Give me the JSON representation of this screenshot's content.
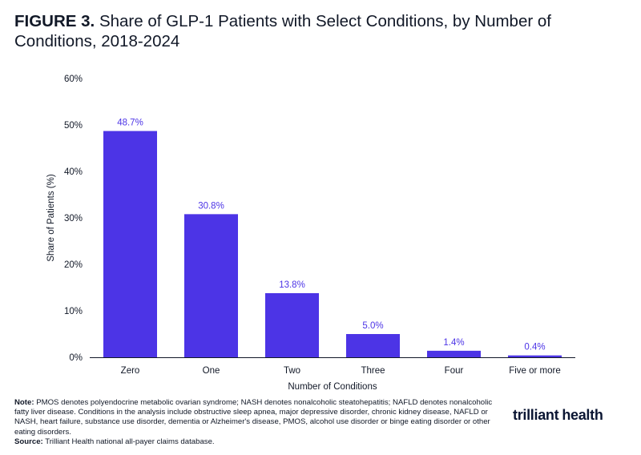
{
  "title": {
    "figure_label": "FIGURE 3.",
    "text": "Share of GLP-1 Patients with Select Conditions, by Number of Conditions, 2018-2024"
  },
  "chart_data": {
    "type": "bar",
    "categories": [
      "Zero",
      "One",
      "Two",
      "Three",
      "Four",
      "Five or more"
    ],
    "values": [
      48.7,
      30.8,
      13.8,
      5.0,
      1.4,
      0.4
    ],
    "data_labels": [
      "48.7%",
      "30.8%",
      "13.8%",
      "5.0%",
      "1.4%",
      "0.4%"
    ],
    "xlabel": "Number of Conditions",
    "ylabel": "Share of Patients (%)",
    "ylim": [
      0,
      60
    ],
    "yticks": [
      0,
      10,
      20,
      30,
      40,
      50,
      60
    ],
    "ytick_labels": [
      "0%",
      "10%",
      "20%",
      "30%",
      "40%",
      "50%",
      "60%"
    ],
    "grid": false,
    "bar_color": "#4c34e6",
    "label_color": "#4c34e6"
  },
  "notes": {
    "note_label": "Note:",
    "note_text": "PMOS denotes polyendocrine metabolic ovarian syndrome; NASH denotes nonalcoholic steatohepatitis; NAFLD denotes nonalcoholic fatty liver disease. Conditions in the analysis include obstructive sleep apnea, major depressive disorder, chronic kidney disease, NAFLD or NASH, heart failure, substance use disorder, dementia or Alzheimer's disease, PMOS, alcohol use disorder or binge eating disorder or other eating disorders.",
    "source_label": "Source:",
    "source_text": "Trilliant Health national all-payer claims database."
  },
  "logo": {
    "part1": "trilliant",
    "part2": "health"
  }
}
